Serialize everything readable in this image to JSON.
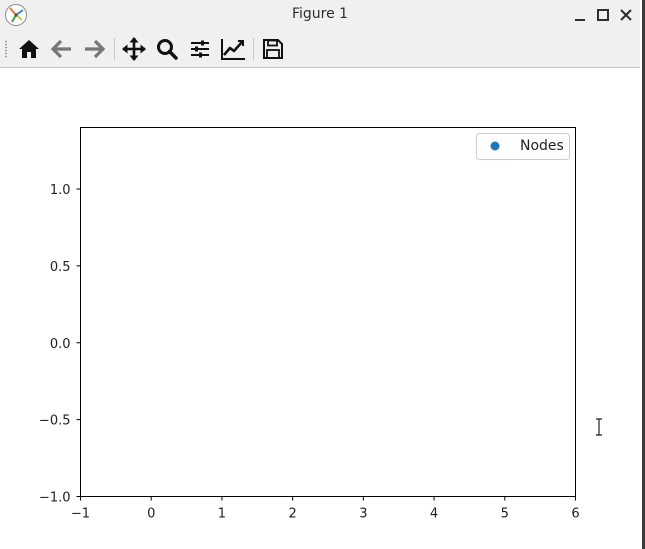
{
  "window": {
    "title": "Figure 1"
  },
  "toolbar": {
    "buttons": [
      {
        "name": "home",
        "icon": "home-icon"
      },
      {
        "name": "back",
        "icon": "arrow-left-icon"
      },
      {
        "name": "forward",
        "icon": "arrow-right-icon"
      },
      {
        "name": "pan",
        "icon": "move-icon"
      },
      {
        "name": "zoom",
        "icon": "magnifier-icon"
      },
      {
        "name": "configure-subplots",
        "icon": "sliders-icon"
      },
      {
        "name": "edit-axis",
        "icon": "line-chart-icon"
      },
      {
        "name": "save",
        "icon": "floppy-disk-icon"
      }
    ]
  },
  "chart_data": {
    "type": "scatter",
    "title": "",
    "xlabel": "",
    "ylabel": "",
    "xlim": [
      -1,
      6
    ],
    "ylim": [
      -1,
      1.4
    ],
    "xticks": [
      -1,
      0,
      1,
      2,
      3,
      4,
      5,
      6
    ],
    "yticks": [
      -1.0,
      -0.5,
      0.0,
      0.5,
      1.0
    ],
    "xtick_labels": [
      "−1",
      "0",
      "1",
      "2",
      "3",
      "4",
      "5",
      "6"
    ],
    "ytick_labels": [
      "−1.0",
      "−0.5",
      "0.0",
      "0.5",
      "1.0"
    ],
    "grid": false,
    "legend_position": "top-right",
    "series": [
      {
        "name": "Nodes",
        "color": "#1f77b4",
        "points": []
      }
    ]
  }
}
